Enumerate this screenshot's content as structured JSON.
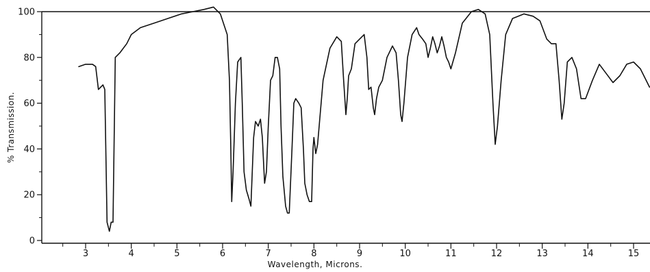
{
  "chart_data": {
    "type": "line",
    "title": "",
    "xlabel": "Wavelength, Microns.",
    "ylabel": "% Transmission.",
    "xlim": [
      2.0,
      15.35
    ],
    "ylim": [
      0,
      100
    ],
    "grid": false,
    "x_ticks": [
      3,
      4,
      5,
      6,
      7,
      8,
      9,
      10,
      11,
      12,
      13,
      14,
      15
    ],
    "y_ticks": [
      0,
      20,
      40,
      60,
      80,
      100
    ],
    "series": [
      {
        "color": "#111111",
        "points": [
          [
            2.85,
            76
          ],
          [
            3.0,
            77
          ],
          [
            3.15,
            77
          ],
          [
            3.22,
            76
          ],
          [
            3.28,
            66
          ],
          [
            3.33,
            67
          ],
          [
            3.38,
            68
          ],
          [
            3.42,
            66
          ],
          [
            3.47,
            8
          ],
          [
            3.52,
            4
          ],
          [
            3.56,
            8
          ],
          [
            3.6,
            8
          ],
          [
            3.65,
            80
          ],
          [
            3.75,
            82
          ],
          [
            3.9,
            86
          ],
          [
            4.0,
            90
          ],
          [
            4.2,
            93
          ],
          [
            4.5,
            95
          ],
          [
            4.8,
            97
          ],
          [
            5.1,
            99
          ],
          [
            5.35,
            100
          ],
          [
            5.6,
            101
          ],
          [
            5.8,
            102
          ],
          [
            5.95,
            99
          ],
          [
            6.1,
            90
          ],
          [
            6.15,
            70
          ],
          [
            6.18,
            40
          ],
          [
            6.2,
            17
          ],
          [
            6.23,
            30
          ],
          [
            6.28,
            60
          ],
          [
            6.33,
            78
          ],
          [
            6.4,
            80
          ],
          [
            6.43,
            60
          ],
          [
            6.47,
            30
          ],
          [
            6.52,
            22
          ],
          [
            6.58,
            18
          ],
          [
            6.62,
            15
          ],
          [
            6.68,
            45
          ],
          [
            6.72,
            52
          ],
          [
            6.78,
            50
          ],
          [
            6.83,
            53
          ],
          [
            6.87,
            45
          ],
          [
            6.92,
            25
          ],
          [
            6.96,
            30
          ],
          [
            7.0,
            50
          ],
          [
            7.05,
            70
          ],
          [
            7.1,
            72
          ],
          [
            7.15,
            80
          ],
          [
            7.2,
            80
          ],
          [
            7.25,
            75
          ],
          [
            7.28,
            50
          ],
          [
            7.32,
            28
          ],
          [
            7.38,
            15
          ],
          [
            7.42,
            12
          ],
          [
            7.46,
            12
          ],
          [
            7.52,
            40
          ],
          [
            7.56,
            60
          ],
          [
            7.6,
            62
          ],
          [
            7.67,
            60
          ],
          [
            7.72,
            58
          ],
          [
            7.77,
            40
          ],
          [
            7.8,
            25
          ],
          [
            7.85,
            20
          ],
          [
            7.9,
            17
          ],
          [
            7.95,
            17
          ],
          [
            7.98,
            40
          ],
          [
            8.0,
            45
          ],
          [
            8.04,
            38
          ],
          [
            8.08,
            42
          ],
          [
            8.2,
            70
          ],
          [
            8.35,
            84
          ],
          [
            8.5,
            89
          ],
          [
            8.6,
            87
          ],
          [
            8.65,
            70
          ],
          [
            8.7,
            55
          ],
          [
            8.73,
            62
          ],
          [
            8.76,
            72
          ],
          [
            8.82,
            75
          ],
          [
            8.9,
            86
          ],
          [
            9.0,
            88
          ],
          [
            9.1,
            90
          ],
          [
            9.16,
            80
          ],
          [
            9.2,
            66
          ],
          [
            9.25,
            67
          ],
          [
            9.3,
            58
          ],
          [
            9.33,
            55
          ],
          [
            9.37,
            62
          ],
          [
            9.42,
            67
          ],
          [
            9.5,
            70
          ],
          [
            9.6,
            80
          ],
          [
            9.72,
            85
          ],
          [
            9.8,
            82
          ],
          [
            9.85,
            70
          ],
          [
            9.9,
            55
          ],
          [
            9.93,
            52
          ],
          [
            9.97,
            60
          ],
          [
            10.05,
            80
          ],
          [
            10.15,
            90
          ],
          [
            10.25,
            93
          ],
          [
            10.3,
            90
          ],
          [
            10.38,
            88
          ],
          [
            10.45,
            86
          ],
          [
            10.5,
            80
          ],
          [
            10.55,
            84
          ],
          [
            10.6,
            89
          ],
          [
            10.65,
            86
          ],
          [
            10.7,
            82
          ],
          [
            10.75,
            85
          ],
          [
            10.8,
            89
          ],
          [
            10.85,
            85
          ],
          [
            10.9,
            80
          ],
          [
            10.95,
            78
          ],
          [
            11.0,
            75
          ],
          [
            11.1,
            82
          ],
          [
            11.25,
            95
          ],
          [
            11.45,
            100
          ],
          [
            11.6,
            101
          ],
          [
            11.75,
            99
          ],
          [
            11.85,
            90
          ],
          [
            11.92,
            60
          ],
          [
            11.97,
            42
          ],
          [
            12.02,
            50
          ],
          [
            12.1,
            70
          ],
          [
            12.2,
            90
          ],
          [
            12.35,
            97
          ],
          [
            12.6,
            99
          ],
          [
            12.8,
            98
          ],
          [
            12.95,
            96
          ],
          [
            13.1,
            88
          ],
          [
            13.2,
            86
          ],
          [
            13.3,
            86
          ],
          [
            13.37,
            70
          ],
          [
            13.43,
            53
          ],
          [
            13.48,
            60
          ],
          [
            13.55,
            78
          ],
          [
            13.65,
            80
          ],
          [
            13.75,
            75
          ],
          [
            13.85,
            62
          ],
          [
            13.95,
            62
          ],
          [
            14.1,
            70
          ],
          [
            14.25,
            77
          ],
          [
            14.4,
            73
          ],
          [
            14.55,
            69
          ],
          [
            14.7,
            72
          ],
          [
            14.85,
            77
          ],
          [
            15.0,
            78
          ],
          [
            15.15,
            75
          ],
          [
            15.3,
            69
          ],
          [
            15.35,
            67
          ]
        ]
      }
    ]
  }
}
